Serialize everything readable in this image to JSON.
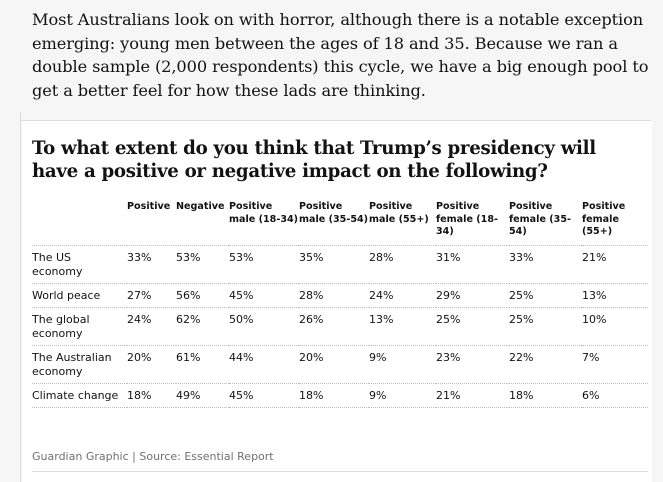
{
  "article": {
    "paragraph": "Most Australians look on with horror, although there is a notable exception emerging: young men between the ages of 18 and 35. Because we ran a double sample (2,000 respondents) this cycle, we have a big enough pool to get a better feel for how these lads are thinking."
  },
  "figure": {
    "title": "To what extent do you think that Trump’s presidency will have a positive or negative impact on the following?",
    "source": "Guardian Graphic | Source: Essential Report"
  },
  "chart_data": {
    "type": "table",
    "title": "To what extent do you think that Trump’s presidency will have a positive or negative impact on the following?",
    "columns": [
      "",
      "Positive",
      "Negative",
      "Positive male (18-34)",
      "Positive male (35-54)",
      "Positive male (55+)",
      "Positive female (18-34)",
      "Positive female (35-54)",
      "Positive female (55+)"
    ],
    "rows": [
      {
        "label": "The US economy",
        "values": [
          "33%",
          "53%",
          "53%",
          "35%",
          "28%",
          "31%",
          "33%",
          "21%"
        ]
      },
      {
        "label": "World peace",
        "values": [
          "27%",
          "56%",
          "45%",
          "28%",
          "24%",
          "29%",
          "25%",
          "13%"
        ]
      },
      {
        "label": "The global economy",
        "values": [
          "24%",
          "62%",
          "50%",
          "26%",
          "13%",
          "25%",
          "25%",
          "10%"
        ]
      },
      {
        "label": "The Australian economy",
        "values": [
          "20%",
          "61%",
          "44%",
          "20%",
          "9%",
          "23%",
          "22%",
          "7%"
        ]
      },
      {
        "label": "Climate change",
        "values": [
          "18%",
          "49%",
          "45%",
          "18%",
          "9%",
          "21%",
          "18%",
          "6%"
        ]
      }
    ]
  }
}
